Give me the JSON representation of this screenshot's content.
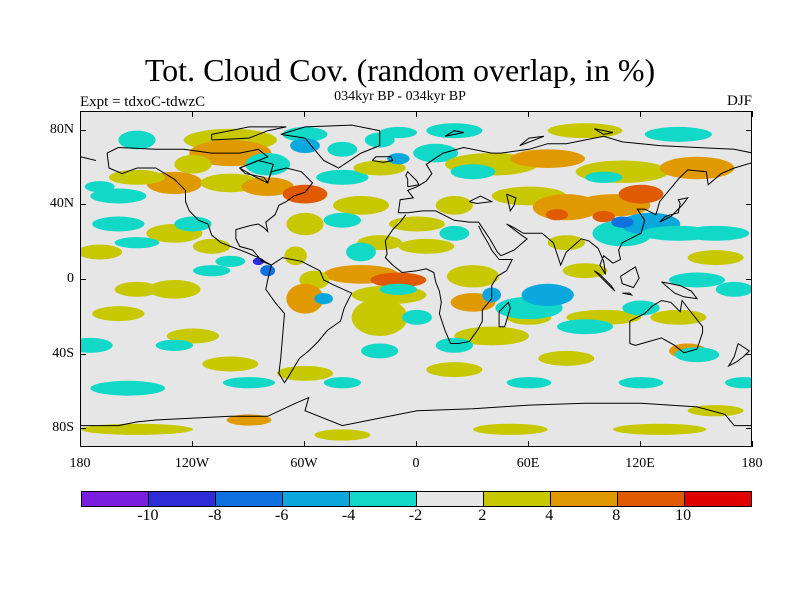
{
  "title": "Tot. Cloud Cov. (random overlap, in %)",
  "subtitle": "034kyr BP - 034kyr BP",
  "experiment_label": "Expt = tdxoC-tdwzC",
  "season_label": "DJF",
  "map": {
    "projection": "cylindrical equidistant",
    "background_color": "#e6e6e6",
    "lat_ticks": [
      {
        "label": "80N",
        "lat": 80
      },
      {
        "label": "40N",
        "lat": 40
      },
      {
        "label": "0",
        "lat": 0
      },
      {
        "label": "40S",
        "lat": -40
      },
      {
        "label": "80S",
        "lat": -80
      }
    ],
    "lon_ticks": [
      {
        "label": "180",
        "lon": -180
      },
      {
        "label": "120W",
        "lon": -120
      },
      {
        "label": "60W",
        "lon": -60
      },
      {
        "label": "0",
        "lon": 0
      },
      {
        "label": "60E",
        "lon": 60
      },
      {
        "label": "120E",
        "lon": 120
      },
      {
        "label": "180",
        "lon": 180
      }
    ]
  },
  "colorbar": {
    "colors": [
      "#7a1fe0",
      "#2c2cd8",
      "#0f70e0",
      "#0aa8dc",
      "#12d8c8",
      "#e6e6e6",
      "#c8c800",
      "#e09a00",
      "#e05a00",
      "#e00000"
    ],
    "labels": [
      "-10",
      "-8",
      "-6",
      "-4",
      "-2",
      "2",
      "4",
      "8",
      "10"
    ]
  }
}
